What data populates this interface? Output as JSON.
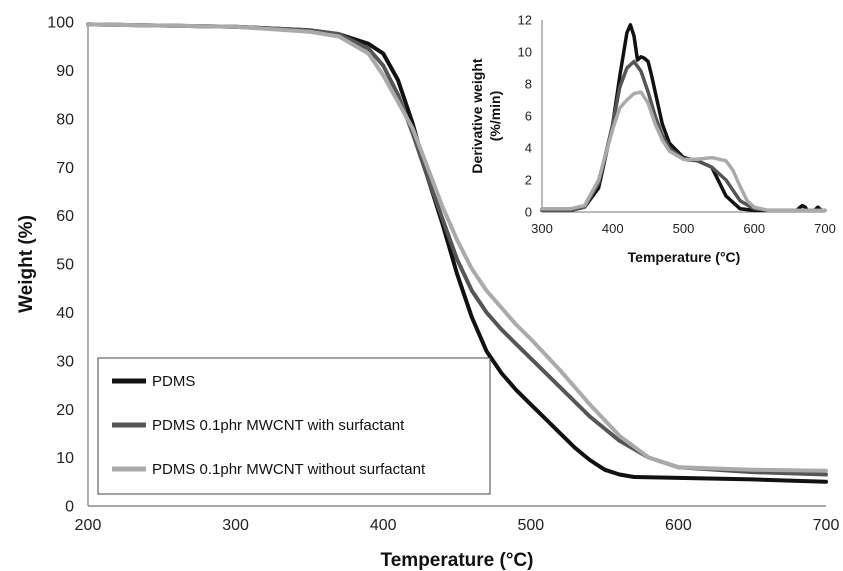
{
  "chart_data": [
    {
      "type": "line",
      "xlabel": "Temperature (°C)",
      "ylabel": "Weight (%)",
      "xlim": [
        200,
        700
      ],
      "ylim": [
        0,
        100
      ],
      "xticks": [
        "200",
        "300",
        "400",
        "500",
        "600",
        "700"
      ],
      "yticks": [
        "0",
        "10",
        "20",
        "30",
        "40",
        "50",
        "60",
        "70",
        "80",
        "90",
        "100"
      ],
      "grid": false,
      "legend_position": "bottom-left",
      "series": [
        {
          "name": "PDMS",
          "color": "#111111",
          "x": [
            200,
            300,
            350,
            370,
            390,
            400,
            410,
            420,
            430,
            440,
            450,
            460,
            470,
            480,
            490,
            500,
            510,
            520,
            530,
            540,
            550,
            560,
            570,
            600,
            650,
            700
          ],
          "y": [
            99.5,
            99.0,
            98.3,
            97.5,
            95.5,
            93.5,
            88.0,
            79.0,
            68.0,
            58.5,
            48.0,
            39.0,
            32.0,
            27.5,
            24.0,
            21.0,
            18.0,
            15.0,
            12.0,
            9.5,
            7.5,
            6.5,
            6.0,
            5.8,
            5.5,
            5.0
          ]
        },
        {
          "name": "PDMS 0.1phr MWCNT with surfactant",
          "color": "#555555",
          "x": [
            200,
            300,
            350,
            370,
            390,
            400,
            410,
            420,
            430,
            440,
            450,
            460,
            470,
            480,
            490,
            500,
            520,
            540,
            560,
            580,
            600,
            650,
            700
          ],
          "y": [
            99.5,
            99.0,
            98.3,
            97.5,
            94.5,
            91.0,
            85.0,
            77.0,
            68.0,
            59.5,
            51.0,
            44.5,
            40.0,
            36.5,
            33.5,
            30.5,
            24.5,
            18.5,
            13.5,
            10.0,
            8.0,
            7.0,
            6.5
          ]
        },
        {
          "name": "PDMS 0.1phr MWCNT without surfactant",
          "color": "#aaaaaa",
          "x": [
            200,
            300,
            350,
            370,
            390,
            400,
            410,
            420,
            430,
            440,
            450,
            460,
            470,
            480,
            490,
            500,
            520,
            540,
            560,
            580,
            600,
            650,
            700
          ],
          "y": [
            99.5,
            99.0,
            98.0,
            97.0,
            93.5,
            89.0,
            83.5,
            78.0,
            70.0,
            62.0,
            55.0,
            49.0,
            44.5,
            41.0,
            37.5,
            34.5,
            28.0,
            21.0,
            14.5,
            10.0,
            8.0,
            7.5,
            7.3
          ]
        }
      ]
    },
    {
      "type": "line",
      "xlabel": "Temperature  (°C)",
      "ylabel": "Derivative weight (%/min)",
      "ylabel_lines": [
        "Derivative weight",
        "(%/min)"
      ],
      "xlim": [
        300,
        700
      ],
      "ylim": [
        0,
        12
      ],
      "xticks": [
        "300",
        "400",
        "500",
        "600",
        "700"
      ],
      "yticks": [
        "0",
        "2",
        "4",
        "6",
        "8",
        "10",
        "12"
      ],
      "grid": false,
      "series": [
        {
          "color": "#111111",
          "x": [
            300,
            340,
            360,
            380,
            400,
            410,
            420,
            425,
            430,
            435,
            440,
            445,
            450,
            455,
            460,
            470,
            480,
            500,
            520,
            540,
            560,
            580,
            600,
            610,
            620,
            660,
            665,
            668,
            672,
            675,
            685,
            690,
            695,
            700
          ],
          "y": [
            0.1,
            0.1,
            0.3,
            1.5,
            5.5,
            8.5,
            11.2,
            11.7,
            11.0,
            9.5,
            9.7,
            9.6,
            9.4,
            8.5,
            7.5,
            5.5,
            4.3,
            3.4,
            3.2,
            2.8,
            1.0,
            0.2,
            0.1,
            0.1,
            0.1,
            0.1,
            0.3,
            0.4,
            0.3,
            0.1,
            0.1,
            0.3,
            0.1,
            0.1
          ]
        },
        {
          "color": "#555555",
          "x": [
            300,
            340,
            360,
            380,
            400,
            410,
            420,
            430,
            440,
            450,
            460,
            470,
            480,
            500,
            520,
            540,
            560,
            580,
            600,
            620,
            650,
            700
          ],
          "y": [
            0.1,
            0.1,
            0.3,
            1.8,
            5.5,
            7.8,
            9.0,
            9.4,
            8.8,
            7.5,
            6.0,
            4.8,
            4.0,
            3.3,
            3.2,
            2.8,
            2.0,
            0.7,
            0.2,
            0.1,
            0.1,
            0.1
          ]
        },
        {
          "color": "#aaaaaa",
          "x": [
            300,
            340,
            360,
            380,
            400,
            410,
            420,
            430,
            440,
            450,
            460,
            470,
            480,
            500,
            520,
            540,
            560,
            570,
            580,
            590,
            600,
            620,
            650,
            700
          ],
          "y": [
            0.2,
            0.2,
            0.4,
            2.0,
            5.2,
            6.5,
            7.0,
            7.4,
            7.5,
            6.8,
            5.5,
            4.5,
            3.8,
            3.3,
            3.3,
            3.4,
            3.2,
            2.6,
            1.6,
            0.7,
            0.3,
            0.1,
            0.1,
            0.1
          ]
        }
      ]
    }
  ]
}
